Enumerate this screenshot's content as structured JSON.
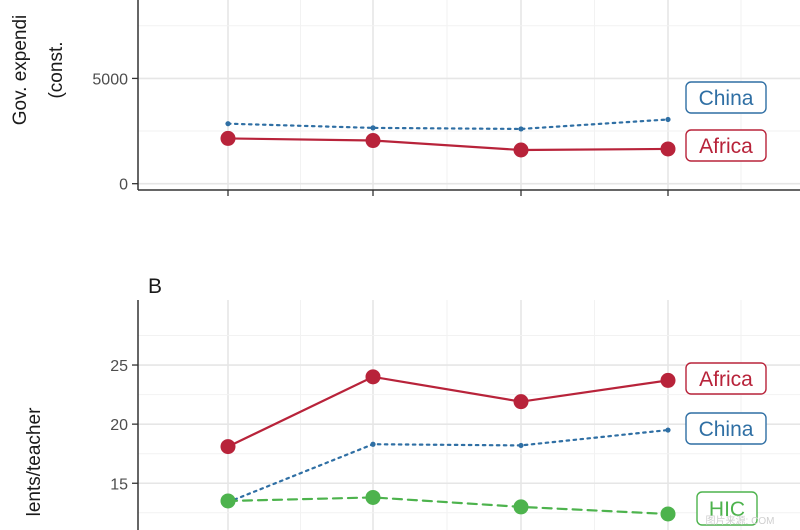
{
  "chart_data": [
    {
      "type": "line",
      "panel": "",
      "ylabel_lines": [
        "Gov. expendi",
        "(const."
      ],
      "ylim": [
        -300,
        9200
      ],
      "yticks": [
        0,
        5000
      ],
      "x": [
        1,
        2,
        3,
        4
      ],
      "series": [
        {
          "name": "China",
          "color": "#2f6fa4",
          "dash": "dotted",
          "marker": "small",
          "values": [
            2850,
            2650,
            2600,
            3050
          ]
        },
        {
          "name": "Africa",
          "color": "#b8233a",
          "dash": "solid",
          "marker": "large",
          "values": [
            2150,
            2050,
            1600,
            1650
          ]
        }
      ]
    },
    {
      "type": "line",
      "panel": "B",
      "ylabel_lines": [
        "lents/teacher"
      ],
      "ylim": [
        10.2,
        30.5
      ],
      "yticks": [
        15,
        20,
        25
      ],
      "x": [
        1,
        2,
        3,
        4
      ],
      "series": [
        {
          "name": "Africa",
          "color": "#b8233a",
          "dash": "solid",
          "marker": "large",
          "values": [
            18.1,
            24.0,
            21.9,
            23.7
          ]
        },
        {
          "name": "China",
          "color": "#2f6fa4",
          "dash": "dotted",
          "marker": "small",
          "values": [
            13.4,
            18.3,
            18.2,
            19.5
          ]
        },
        {
          "name": "HIC",
          "color": "#4db34d",
          "dash": "dashed",
          "marker": "large",
          "values": [
            13.5,
            13.8,
            13.0,
            12.4
          ]
        }
      ]
    }
  ],
  "watermark": "图片来源: COM"
}
